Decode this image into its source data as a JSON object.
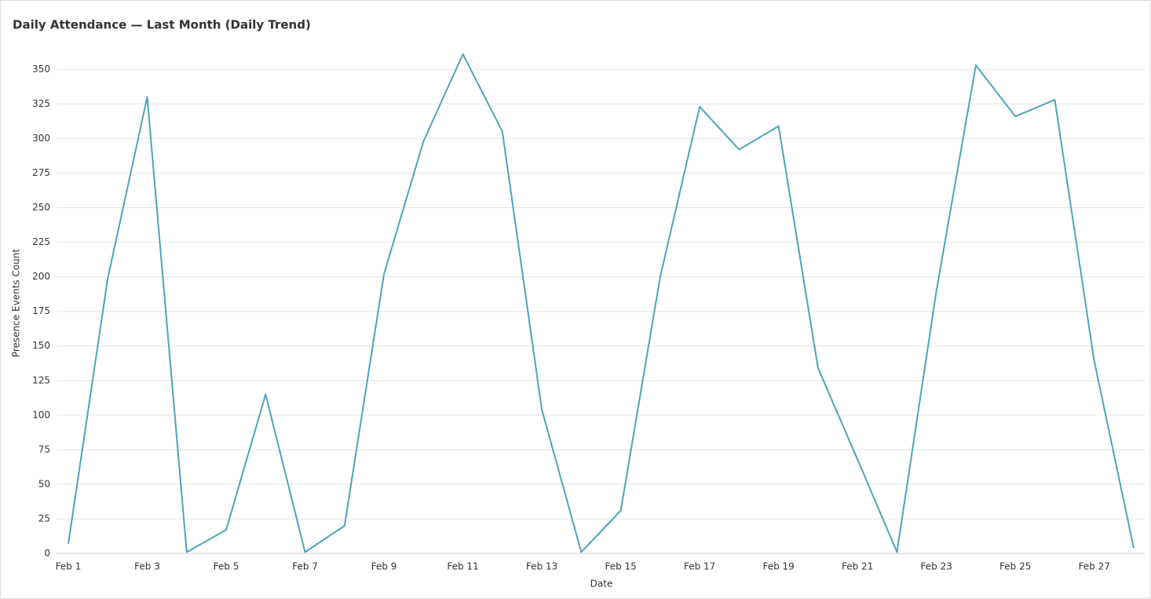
{
  "chart_data": {
    "type": "line",
    "title": "Daily Attendance — Last Month (Daily Trend)",
    "x_label": "Date",
    "y_label": "Presence Events Count",
    "categories": [
      "Feb 1",
      null,
      "Feb 3",
      null,
      "Feb 5",
      null,
      "Feb 7",
      null,
      "Feb 9",
      null,
      "Feb 11",
      null,
      "Feb 13",
      null,
      "Feb 15",
      null,
      "Feb 17",
      null,
      "Feb 19",
      null,
      "Feb 21",
      null,
      "Feb 23",
      null,
      "Feb 25",
      null,
      "Feb 27",
      null
    ],
    "series": [
      {
        "name": "Presence Events Count",
        "color": "#4ea3bb",
        "values": [
          7,
          199,
          330,
          1,
          17,
          115,
          1,
          20,
          202,
          298,
          361,
          305,
          104,
          1,
          31,
          200,
          323,
          292,
          309,
          134,
          68,
          1,
          190,
          353,
          316,
          328,
          139,
          4
        ]
      }
    ],
    "ylim": [
      0,
      361
    ],
    "yticks": [
      0,
      25,
      50,
      75,
      100,
      125,
      150,
      175,
      200,
      225,
      250,
      275,
      300,
      325,
      350
    ],
    "grid": true
  }
}
